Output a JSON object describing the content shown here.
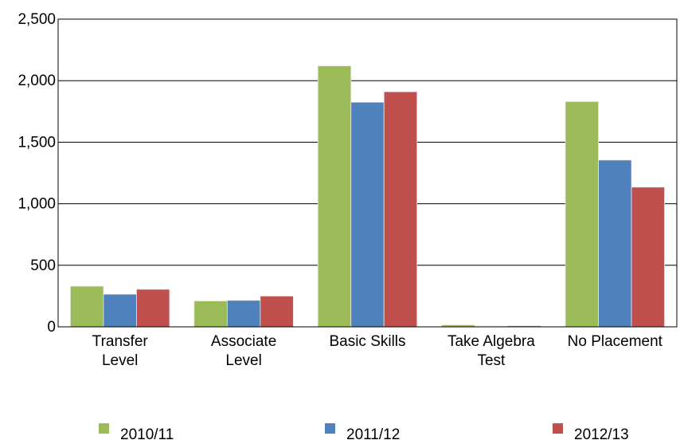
{
  "chart_data": {
    "type": "bar",
    "categories": [
      [
        "Transfer",
        "Level"
      ],
      [
        "Associate",
        "Level"
      ],
      [
        "Basic Skills"
      ],
      [
        "Take Algebra",
        "Test"
      ],
      [
        "No Placement"
      ]
    ],
    "series": [
      {
        "name": "2010/11",
        "color": "#9bbb59",
        "values": [
          330,
          210,
          2120,
          15,
          1830
        ]
      },
      {
        "name": "2011/12",
        "color": "#4f81bd",
        "values": [
          265,
          215,
          1825,
          5,
          1355
        ]
      },
      {
        "name": "2012/13",
        "color": "#c0504d",
        "values": [
          305,
          250,
          1910,
          8,
          1135
        ]
      }
    ],
    "yticks": [
      "0",
      "500",
      "1,000",
      "1,500",
      "2,000",
      "2,500"
    ],
    "ylim": [
      0,
      2500
    ],
    "title": "",
    "xlabel": "",
    "ylabel": "",
    "grid": true,
    "legend_position": "bottom"
  }
}
